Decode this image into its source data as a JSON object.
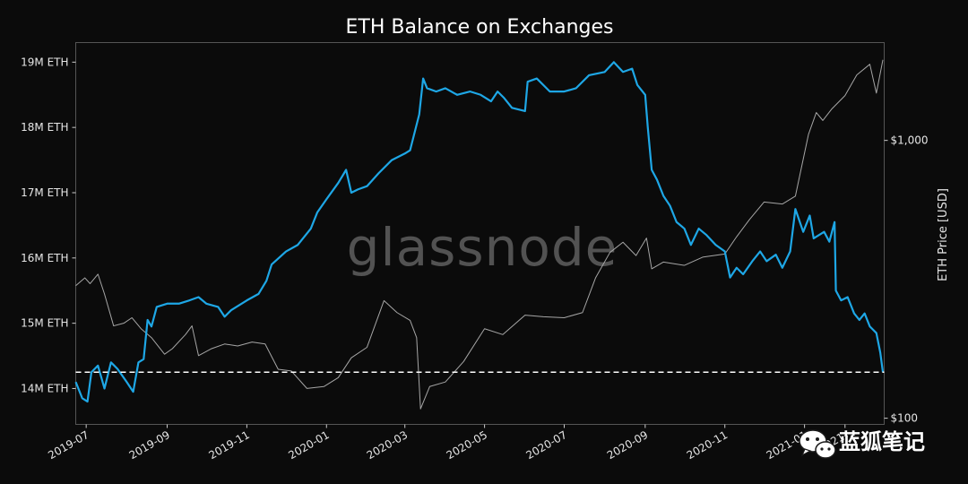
{
  "chart_data": {
    "type": "line",
    "title": "ETH Balance on Exchanges",
    "x": [
      "2019-07",
      "2019-09",
      "2019-11",
      "2020-01",
      "2020-03",
      "2020-05",
      "2020-07",
      "2020-09",
      "2020-11",
      "2021-01",
      "2021-02"
    ],
    "x_tick_labels": [
      "2019-07",
      "2019-09",
      "2019-11",
      "2020-01",
      "2020-03",
      "2020-05",
      "2020-07",
      "2020-09",
      "2020-11",
      "2021-01",
      "2021-"
    ],
    "xlim": [
      "2019-06-23",
      "2021-03-03"
    ],
    "ylabel_left": "",
    "ylabel_right": "ETH Price [USD]",
    "ylim_left": [
      13.45,
      19.3
    ],
    "y_left_ticks": [
      14,
      15,
      16,
      17,
      18,
      19
    ],
    "y_left_tick_labels": [
      "14M ETH",
      "15M ETH",
      "16M ETH",
      "17M ETH",
      "18M ETH",
      "19M ETH"
    ],
    "y_right_scale": "log",
    "ylim_right": [
      95,
      2250
    ],
    "y_right_ticks": [
      100,
      1000
    ],
    "y_right_tick_labels": [
      "$100",
      "$1,000"
    ],
    "grid": false,
    "reference_line": {
      "y": 14.25,
      "style": "dashed",
      "color": "#ffffff"
    },
    "series": [
      {
        "axis": "left",
        "color": "#1ea7e6",
        "points": [
          [
            "2019-06-23",
            14.1
          ],
          [
            "2019-06-28",
            13.85
          ],
          [
            "2019-07-02",
            13.8
          ],
          [
            "2019-07-05",
            14.25
          ],
          [
            "2019-07-10",
            14.35
          ],
          [
            "2019-07-15",
            14.0
          ],
          [
            "2019-07-20",
            14.4
          ],
          [
            "2019-07-25",
            14.3
          ],
          [
            "2019-08-01",
            14.1
          ],
          [
            "2019-08-06",
            13.95
          ],
          [
            "2019-08-10",
            14.4
          ],
          [
            "2019-08-14",
            14.45
          ],
          [
            "2019-08-17",
            15.05
          ],
          [
            "2019-08-20",
            14.95
          ],
          [
            "2019-08-24",
            15.25
          ],
          [
            "2019-09-01",
            15.3
          ],
          [
            "2019-09-10",
            15.3
          ],
          [
            "2019-09-18",
            15.35
          ],
          [
            "2019-09-25",
            15.4
          ],
          [
            "2019-10-01",
            15.3
          ],
          [
            "2019-10-10",
            15.25
          ],
          [
            "2019-10-15",
            15.1
          ],
          [
            "2019-10-20",
            15.2
          ],
          [
            "2019-11-01",
            15.35
          ],
          [
            "2019-11-10",
            15.45
          ],
          [
            "2019-11-16",
            15.65
          ],
          [
            "2019-11-20",
            15.9
          ],
          [
            "2019-12-01",
            16.1
          ],
          [
            "2019-12-10",
            16.2
          ],
          [
            "2019-12-20",
            16.45
          ],
          [
            "2019-12-25",
            16.7
          ],
          [
            "2020-01-01",
            16.9
          ],
          [
            "2020-01-10",
            17.15
          ],
          [
            "2020-01-16",
            17.35
          ],
          [
            "2020-01-20",
            17.0
          ],
          [
            "2020-01-25",
            17.05
          ],
          [
            "2020-02-01",
            17.1
          ],
          [
            "2020-02-10",
            17.3
          ],
          [
            "2020-02-20",
            17.5
          ],
          [
            "2020-03-01",
            17.6
          ],
          [
            "2020-03-05",
            17.65
          ],
          [
            "2020-03-12",
            18.2
          ],
          [
            "2020-03-15",
            18.75
          ],
          [
            "2020-03-18",
            18.6
          ],
          [
            "2020-03-25",
            18.55
          ],
          [
            "2020-04-01",
            18.6
          ],
          [
            "2020-04-10",
            18.5
          ],
          [
            "2020-04-20",
            18.55
          ],
          [
            "2020-04-28",
            18.5
          ],
          [
            "2020-05-06",
            18.4
          ],
          [
            "2020-05-11",
            18.55
          ],
          [
            "2020-05-16",
            18.45
          ],
          [
            "2020-05-22",
            18.3
          ],
          [
            "2020-06-01",
            18.25
          ],
          [
            "2020-06-03",
            18.7
          ],
          [
            "2020-06-10",
            18.75
          ],
          [
            "2020-06-20",
            18.55
          ],
          [
            "2020-07-01",
            18.55
          ],
          [
            "2020-07-10",
            18.6
          ],
          [
            "2020-07-20",
            18.8
          ],
          [
            "2020-08-01",
            18.85
          ],
          [
            "2020-08-08",
            19.0
          ],
          [
            "2020-08-15",
            18.85
          ],
          [
            "2020-08-22",
            18.9
          ],
          [
            "2020-08-26",
            18.65
          ],
          [
            "2020-09-01",
            18.5
          ],
          [
            "2020-09-03",
            18.0
          ],
          [
            "2020-09-06",
            17.35
          ],
          [
            "2020-09-10",
            17.2
          ],
          [
            "2020-09-15",
            16.95
          ],
          [
            "2020-09-20",
            16.8
          ],
          [
            "2020-09-25",
            16.55
          ],
          [
            "2020-10-01",
            16.45
          ],
          [
            "2020-10-06",
            16.2
          ],
          [
            "2020-10-12",
            16.45
          ],
          [
            "2020-10-18",
            16.35
          ],
          [
            "2020-10-25",
            16.2
          ],
          [
            "2020-11-01",
            16.1
          ],
          [
            "2020-11-05",
            15.7
          ],
          [
            "2020-11-10",
            15.85
          ],
          [
            "2020-11-15",
            15.75
          ],
          [
            "2020-11-22",
            15.95
          ],
          [
            "2020-11-28",
            16.1
          ],
          [
            "2020-12-03",
            15.95
          ],
          [
            "2020-12-10",
            16.05
          ],
          [
            "2020-12-15",
            15.85
          ],
          [
            "2020-12-21",
            16.1
          ],
          [
            "2020-12-25",
            16.75
          ],
          [
            "2020-12-31",
            16.4
          ],
          [
            "2021-01-05",
            16.65
          ],
          [
            "2021-01-08",
            16.3
          ],
          [
            "2021-01-12",
            16.35
          ],
          [
            "2021-01-16",
            16.4
          ],
          [
            "2021-01-20",
            16.25
          ],
          [
            "2021-01-24",
            16.55
          ],
          [
            "2021-01-25",
            15.5
          ],
          [
            "2021-01-29",
            15.35
          ],
          [
            "2021-02-03",
            15.4
          ],
          [
            "2021-02-08",
            15.15
          ],
          [
            "2021-02-12",
            15.05
          ],
          [
            "2021-02-16",
            15.15
          ],
          [
            "2021-02-20",
            14.95
          ],
          [
            "2021-02-25",
            14.85
          ],
          [
            "2021-02-28",
            14.55
          ],
          [
            "2021-03-02",
            14.25
          ]
        ]
      },
      {
        "axis": "right",
        "color": "#a6a6a6",
        "points": [
          [
            "2019-06-23",
            300
          ],
          [
            "2019-06-30",
            320
          ],
          [
            "2019-07-04",
            305
          ],
          [
            "2019-07-10",
            330
          ],
          [
            "2019-07-15",
            280
          ],
          [
            "2019-07-22",
            215
          ],
          [
            "2019-07-30",
            220
          ],
          [
            "2019-08-05",
            230
          ],
          [
            "2019-08-12",
            210
          ],
          [
            "2019-08-20",
            195
          ],
          [
            "2019-08-30",
            170
          ],
          [
            "2019-09-05",
            178
          ],
          [
            "2019-09-15",
            200
          ],
          [
            "2019-09-20",
            215
          ],
          [
            "2019-09-25",
            168
          ],
          [
            "2019-10-05",
            178
          ],
          [
            "2019-10-15",
            185
          ],
          [
            "2019-10-25",
            182
          ],
          [
            "2019-11-05",
            188
          ],
          [
            "2019-11-15",
            185
          ],
          [
            "2019-11-25",
            150
          ],
          [
            "2019-12-05",
            148
          ],
          [
            "2019-12-17",
            128
          ],
          [
            "2019-12-30",
            130
          ],
          [
            "2020-01-10",
            140
          ],
          [
            "2020-01-20",
            165
          ],
          [
            "2020-02-01",
            180
          ],
          [
            "2020-02-14",
            265
          ],
          [
            "2020-02-24",
            240
          ],
          [
            "2020-03-05",
            225
          ],
          [
            "2020-03-10",
            195
          ],
          [
            "2020-03-13",
            108
          ],
          [
            "2020-03-20",
            130
          ],
          [
            "2020-04-01",
            135
          ],
          [
            "2020-04-15",
            160
          ],
          [
            "2020-05-01",
            210
          ],
          [
            "2020-05-15",
            200
          ],
          [
            "2020-06-01",
            235
          ],
          [
            "2020-06-15",
            232
          ],
          [
            "2020-07-01",
            230
          ],
          [
            "2020-07-15",
            240
          ],
          [
            "2020-07-25",
            320
          ],
          [
            "2020-08-05",
            395
          ],
          [
            "2020-08-15",
            430
          ],
          [
            "2020-08-25",
            385
          ],
          [
            "2020-09-02",
            445
          ],
          [
            "2020-09-06",
            345
          ],
          [
            "2020-09-15",
            365
          ],
          [
            "2020-10-01",
            355
          ],
          [
            "2020-10-15",
            380
          ],
          [
            "2020-11-01",
            390
          ],
          [
            "2020-11-10",
            450
          ],
          [
            "2020-11-20",
            520
          ],
          [
            "2020-12-01",
            600
          ],
          [
            "2020-12-15",
            590
          ],
          [
            "2020-12-25",
            630
          ],
          [
            "2021-01-04",
            1050
          ],
          [
            "2021-01-10",
            1260
          ],
          [
            "2021-01-15",
            1180
          ],
          [
            "2021-01-22",
            1300
          ],
          [
            "2021-02-01",
            1450
          ],
          [
            "2021-02-10",
            1720
          ],
          [
            "2021-02-20",
            1880
          ],
          [
            "2021-02-25",
            1480
          ],
          [
            "2021-03-02",
            1950
          ]
        ]
      }
    ]
  },
  "watermark": "glassnode",
  "badge": {
    "text": "蓝狐笔记",
    "icon": "wechat-icon"
  }
}
